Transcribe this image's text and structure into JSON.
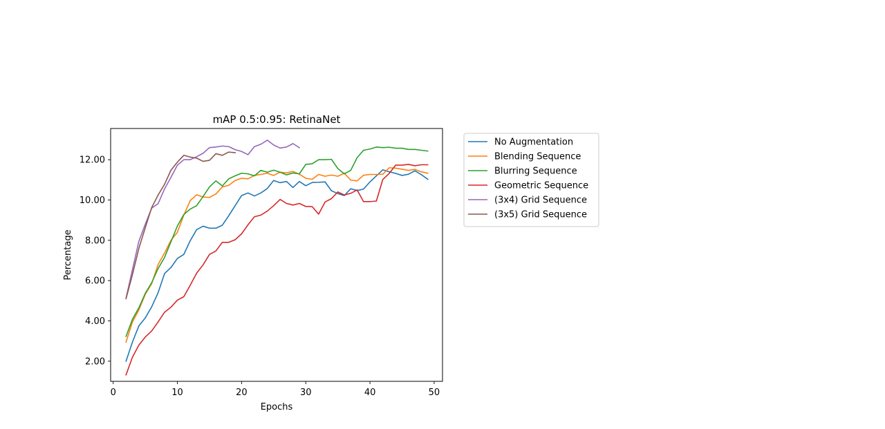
{
  "chart_data": {
    "type": "line",
    "title": "mAP 0.5:0.95: RetinaNet",
    "xlabel": "Epochs",
    "ylabel": "Percentage",
    "xlim": [
      -0.4,
      51.3
    ],
    "ylim": [
      1.0,
      13.55
    ],
    "xticks": [
      0,
      10,
      20,
      30,
      40,
      50
    ],
    "xtick_labels": [
      "0",
      "10",
      "20",
      "30",
      "40",
      "50"
    ],
    "yticks": [
      2,
      4,
      6,
      8,
      10,
      12
    ],
    "ytick_labels": [
      "2.00",
      "4.00",
      "6.00",
      "8.00",
      "10.00",
      "12.00"
    ],
    "grid": false,
    "legend_position": "outside-right-top",
    "series": [
      {
        "name": "No Augmentation",
        "color": "#1f77b4",
        "x": [
          2,
          3,
          4,
          5,
          6,
          7,
          8,
          9,
          10,
          11,
          12,
          13,
          14,
          15,
          16,
          17,
          18,
          19,
          20,
          21,
          22,
          23,
          24,
          25,
          26,
          27,
          28,
          29,
          30,
          31,
          32,
          33,
          34,
          35,
          36,
          37,
          38,
          39,
          40,
          41,
          42,
          43,
          44,
          45,
          46,
          47,
          48,
          49
        ],
        "y": [
          2.0,
          2.95,
          3.75,
          4.15,
          4.7,
          5.4,
          6.35,
          6.65,
          7.1,
          7.3,
          7.98,
          8.53,
          8.7,
          8.6,
          8.6,
          8.75,
          9.22,
          9.72,
          10.22,
          10.35,
          10.2,
          10.35,
          10.57,
          10.97,
          10.86,
          10.92,
          10.62,
          10.92,
          10.71,
          10.87,
          10.88,
          10.9,
          10.46,
          10.32,
          10.22,
          10.56,
          10.47,
          10.54,
          10.9,
          11.2,
          11.5,
          11.4,
          11.32,
          11.22,
          11.28,
          11.45,
          11.26,
          11.03
        ]
      },
      {
        "name": "Blending Sequence",
        "color": "#ff7f0e",
        "x": [
          2,
          3,
          4,
          5,
          6,
          7,
          8,
          9,
          10,
          11,
          12,
          13,
          14,
          15,
          16,
          17,
          18,
          19,
          20,
          21,
          22,
          23,
          24,
          25,
          26,
          27,
          28,
          29,
          30,
          31,
          32,
          33,
          34,
          35,
          36,
          37,
          38,
          39,
          40,
          41,
          42,
          43,
          44,
          45,
          46,
          47,
          48,
          49
        ],
        "y": [
          2.95,
          3.95,
          4.55,
          5.32,
          5.85,
          6.8,
          7.37,
          8.0,
          8.4,
          9.25,
          9.97,
          10.26,
          10.15,
          10.13,
          10.3,
          10.65,
          10.73,
          10.97,
          11.08,
          11.05,
          11.22,
          11.27,
          11.33,
          11.22,
          11.38,
          11.35,
          11.42,
          11.28,
          11.08,
          11.03,
          11.27,
          11.18,
          11.24,
          11.18,
          11.33,
          10.99,
          10.95,
          11.23,
          11.27,
          11.27,
          11.28,
          11.6,
          11.58,
          11.53,
          11.47,
          11.52,
          11.4,
          11.33
        ]
      },
      {
        "name": "Blurring Sequence",
        "color": "#2ca02c",
        "x": [
          2,
          3,
          4,
          5,
          6,
          7,
          8,
          9,
          10,
          11,
          12,
          13,
          14,
          15,
          16,
          17,
          18,
          19,
          20,
          21,
          22,
          23,
          24,
          25,
          26,
          27,
          28,
          29,
          30,
          31,
          32,
          33,
          34,
          35,
          36,
          37,
          38,
          39,
          40,
          41,
          42,
          43,
          44,
          45,
          46,
          47,
          48,
          49
        ],
        "y": [
          3.23,
          4.08,
          4.65,
          5.37,
          5.9,
          6.6,
          7.15,
          7.93,
          8.71,
          9.28,
          9.55,
          9.72,
          10.17,
          10.65,
          10.95,
          10.7,
          11.05,
          11.2,
          11.33,
          11.3,
          11.2,
          11.47,
          11.38,
          11.48,
          11.38,
          11.25,
          11.34,
          11.3,
          11.77,
          11.8,
          12.0,
          12.0,
          12.02,
          11.56,
          11.3,
          11.47,
          12.1,
          12.47,
          12.53,
          12.63,
          12.6,
          12.62,
          12.57,
          12.57,
          12.51,
          12.51,
          12.47,
          12.43
        ]
      },
      {
        "name": "Geometric Sequence",
        "color": "#d62728",
        "x": [
          2,
          3,
          4,
          5,
          6,
          7,
          8,
          9,
          10,
          11,
          12,
          13,
          14,
          15,
          16,
          17,
          18,
          19,
          20,
          21,
          22,
          23,
          24,
          25,
          26,
          27,
          28,
          29,
          30,
          31,
          32,
          33,
          34,
          35,
          36,
          37,
          38,
          39,
          40,
          41,
          42,
          43,
          44,
          45,
          46,
          47,
          48,
          49
        ],
        "y": [
          1.32,
          2.2,
          2.8,
          3.2,
          3.5,
          3.95,
          4.43,
          4.68,
          5.03,
          5.2,
          5.77,
          6.37,
          6.78,
          7.3,
          7.47,
          7.9,
          7.9,
          8.03,
          8.32,
          8.77,
          9.17,
          9.25,
          9.45,
          9.72,
          10.03,
          9.83,
          9.75,
          9.83,
          9.68,
          9.67,
          9.3,
          9.9,
          10.07,
          10.4,
          10.25,
          10.33,
          10.5,
          9.92,
          9.92,
          9.95,
          11.02,
          11.32,
          11.73,
          11.73,
          11.77,
          11.7,
          11.75,
          11.75
        ]
      },
      {
        "name": "(3x4) Grid Sequence",
        "color": "#9467bd",
        "x": [
          2,
          3,
          4,
          5,
          6,
          7,
          8,
          9,
          10,
          11,
          12,
          13,
          14,
          15,
          16,
          17,
          18,
          19,
          20,
          21,
          22,
          23,
          24,
          25,
          26,
          27,
          28,
          29
        ],
        "y": [
          5.13,
          6.55,
          7.95,
          8.8,
          9.6,
          9.82,
          10.55,
          11.13,
          11.73,
          12.0,
          12.0,
          12.15,
          12.32,
          12.6,
          12.63,
          12.68,
          12.65,
          12.5,
          12.41,
          12.25,
          12.65,
          12.77,
          12.97,
          12.73,
          12.58,
          12.63,
          12.8,
          12.6
        ]
      },
      {
        "name": "(3x5) Grid Sequence",
        "color": "#8c564b",
        "x": [
          2,
          3,
          4,
          5,
          6,
          7,
          8,
          9,
          10,
          11,
          12,
          13,
          14,
          15,
          16,
          17,
          18,
          19
        ],
        "y": [
          5.1,
          6.3,
          7.6,
          8.63,
          9.63,
          10.25,
          10.78,
          11.48,
          11.88,
          12.22,
          12.13,
          12.08,
          11.92,
          11.97,
          12.3,
          12.22,
          12.38,
          12.35
        ]
      }
    ]
  }
}
